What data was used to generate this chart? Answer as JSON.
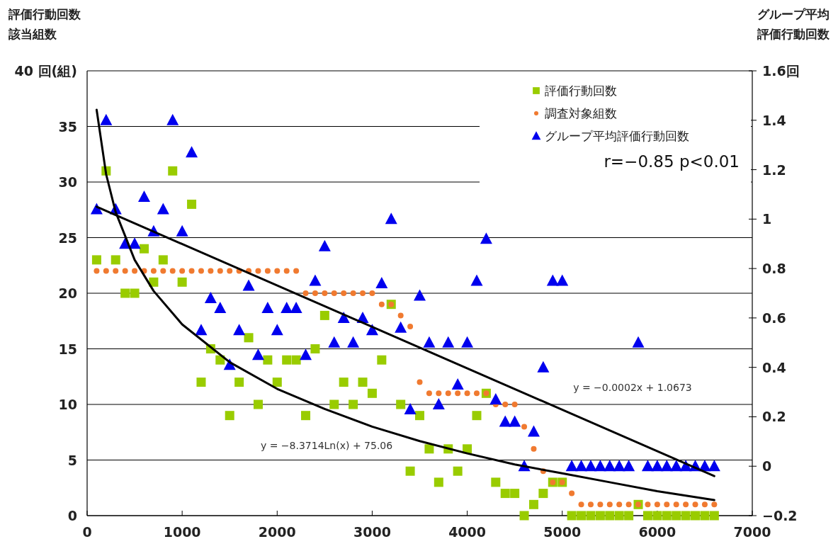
{
  "chart_data": {
    "type": "scatter",
    "ylabel": "評価行動回数該当組数",
    "y2label": "グループ平均評価行動回数",
    "x": [
      100,
      200,
      300,
      400,
      500,
      600,
      700,
      800,
      900,
      1000,
      1100,
      1200,
      1300,
      1400,
      1500,
      1600,
      1700,
      1800,
      1900,
      2000,
      2100,
      2200,
      2300,
      2400,
      2500,
      2600,
      2700,
      2800,
      2900,
      3000,
      3100,
      3200,
      3300,
      3400,
      3500,
      3600,
      3700,
      3800,
      3900,
      4000,
      4100,
      4200,
      4300,
      4400,
      4500,
      4600,
      4700,
      4800,
      4900,
      5000,
      5100,
      5200,
      5300,
      5400,
      5500,
      5600,
      5700,
      5800,
      5900,
      6000,
      6100,
      6200,
      6300,
      6400,
      6500,
      6600
    ],
    "xlim": [
      0,
      7000
    ],
    "xticks": [
      0,
      1000,
      2000,
      3000,
      4000,
      5000,
      6000,
      7000
    ],
    "ylim": [
      0,
      40
    ],
    "yticks": [
      0,
      5,
      10,
      15,
      20,
      25,
      30,
      35,
      {
        "value": 40,
        "label": "40 回(組)"
      }
    ],
    "y2lim": [
      -0.2,
      1.6
    ],
    "y2ticks": [
      -0.2,
      0,
      0.2,
      0.4,
      0.6,
      0.8,
      1,
      1.2,
      1.4,
      {
        "value": 1.6,
        "label": "1.6回"
      }
    ],
    "grid": "y",
    "legend": "top right",
    "series": [
      {
        "name": "評価行動回数",
        "color": "#99cc00",
        "marker": "square",
        "values": [
          23,
          31,
          23,
          20,
          20,
          24,
          21,
          23,
          31,
          21,
          28,
          12,
          15,
          14,
          9,
          12,
          16,
          10,
          14,
          12,
          14,
          14,
          9,
          15,
          18,
          10,
          12,
          10,
          12,
          11,
          14,
          19,
          10,
          4,
          9,
          6,
          3,
          6,
          4,
          6,
          9,
          11,
          3,
          2,
          2,
          0,
          1,
          2,
          3,
          3,
          0,
          0,
          0,
          0,
          0,
          0,
          0,
          1,
          0,
          0,
          0,
          0,
          0,
          0,
          0,
          0
        ]
      },
      {
        "name": "調査対象組数",
        "color": "#f07a30",
        "marker": "circle",
        "values": [
          22,
          22,
          22,
          22,
          22,
          22,
          22,
          22,
          22,
          22,
          22,
          22,
          22,
          22,
          22,
          22,
          22,
          22,
          22,
          22,
          22,
          22,
          20,
          20,
          20,
          20,
          20,
          20,
          20,
          20,
          19,
          19,
          18,
          17,
          12,
          11,
          11,
          11,
          11,
          11,
          11,
          11,
          10,
          10,
          10,
          8,
          6,
          4,
          3,
          3,
          2,
          1,
          1,
          1,
          1,
          1,
          1,
          1,
          1,
          1,
          1,
          1,
          1,
          1,
          1,
          1
        ]
      },
      {
        "name": "グループ平均評価行動回数",
        "color": "#0000ee",
        "marker": "triangle",
        "axis": "y2",
        "values": [
          1.04,
          1.4,
          1.04,
          0.9,
          0.9,
          1.09,
          0.95,
          1.04,
          1.4,
          0.95,
          1.27,
          0.55,
          0.68,
          0.64,
          0.41,
          0.55,
          0.73,
          0.45,
          0.64,
          0.55,
          0.64,
          0.64,
          0.45,
          0.75,
          0.89,
          0.5,
          0.6,
          0.5,
          0.6,
          0.55,
          0.74,
          1.0,
          0.56,
          0.23,
          0.69,
          0.5,
          0.25,
          0.5,
          0.33,
          0.5,
          0.75,
          0.92,
          0.27,
          0.18,
          0.18,
          0,
          0.14,
          0.4,
          0.75,
          0.75,
          0,
          0,
          0,
          0,
          0,
          0,
          0,
          0.5,
          0,
          0,
          0,
          0,
          0,
          0,
          0,
          0
        ]
      },
      {
        "type": "line",
        "color": "#000000",
        "marker": "none",
        "x": [
          100,
          200,
          300,
          500,
          700,
          1000,
          1500,
          2000,
          2500,
          3000,
          3500,
          4000,
          4500,
          5000,
          5500,
          6000,
          6600
        ],
        "values": [
          36.5,
          30.7,
          27.3,
          23.0,
          20.2,
          17.2,
          13.8,
          11.4,
          9.6,
          8.0,
          6.7,
          5.6,
          4.6,
          3.8,
          3.0,
          2.2,
          1.4
        ]
      },
      {
        "type": "line",
        "color": "#000000",
        "marker": "none",
        "axis": "y2",
        "x": [
          100,
          6600
        ],
        "values": [
          1.05,
          -0.04
        ]
      }
    ],
    "annotations": [
      "r=−0.85  p<0.01",
      "y = −0.0002x + 1.0673",
      "y = −8.3714Ln(x) + 75.06"
    ]
  }
}
